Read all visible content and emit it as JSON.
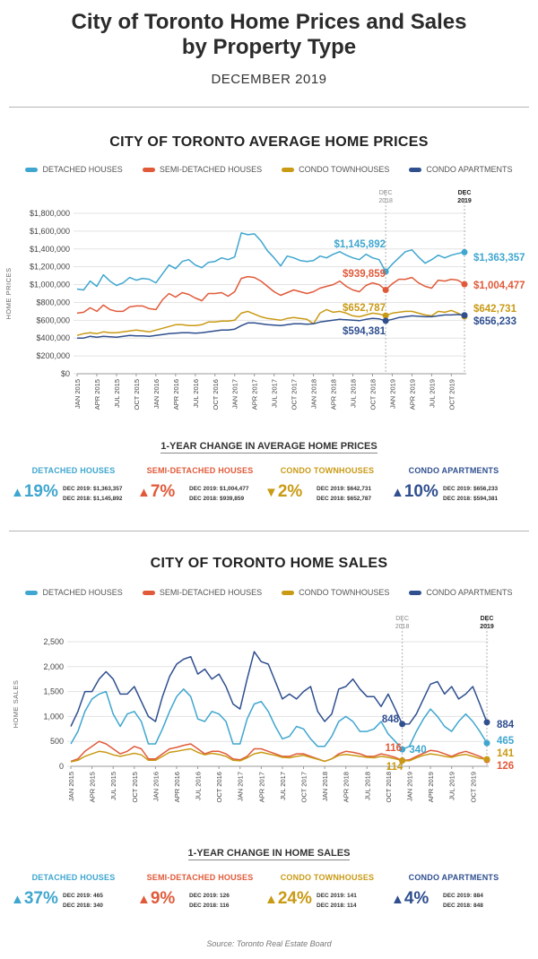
{
  "title_line1": "City of Toronto Home Prices and Sales",
  "title_line2": "by Property Type",
  "subtitle": "DECEMBER 2019",
  "colors": {
    "detached": "#3fa6cf",
    "semi": "#e05a3a",
    "townhouse": "#c99a14",
    "apartment": "#2f4f8f"
  },
  "legend": [
    "DETACHED HOUSES",
    "SEMI-DETACHED HOUSES",
    "CONDO TOWNHOUSES",
    "CONDO APARTMENTS"
  ],
  "prices": {
    "section_title": "CITY OF TORONTO AVERAGE HOME PRICES",
    "ylabel": "HOME PRICES",
    "change_title": "1-YEAR CHANGE IN AVERAGE HOME PRICES",
    "change": [
      {
        "name": "DETACHED HOUSES",
        "arrow": "▲",
        "pct": "19%",
        "line1": "DEC 2019: $1,363,357",
        "line2": "DEC 2018: $1,145,892"
      },
      {
        "name": "SEMI-DETACHED HOUSES",
        "arrow": "▲",
        "pct": "7%",
        "line1": "DEC 2019: $1,004,477",
        "line2": "DEC 2018: $939,859"
      },
      {
        "name": "CONDO TOWNHOUSES",
        "arrow": "▼",
        "pct": "2%",
        "line1": "DEC 2019: $642,731",
        "line2": "DEC 2018: $652,787"
      },
      {
        "name": "CONDO APARTMENTS",
        "arrow": "▲",
        "pct": "10%",
        "line1": "DEC 2019: $656,233",
        "line2": "DEC 2018: $594,381"
      }
    ]
  },
  "sales": {
    "section_title": "CITY OF TORONTO HOME SALES",
    "ylabel": "HOME SALES",
    "change_title": "1-YEAR CHANGE IN HOME SALES",
    "change": [
      {
        "name": "DETACHED HOUSES",
        "arrow": "▲",
        "pct": "37%",
        "line1": "DEC 2019: 465",
        "line2": "DEC 2018: 340"
      },
      {
        "name": "SEMI-DETACHED HOUSES",
        "arrow": "▲",
        "pct": "9%",
        "line1": "DEC 2019: 126",
        "line2": "DEC 2018: 116"
      },
      {
        "name": "CONDO TOWNHOUSES",
        "arrow": "▲",
        "pct": "24%",
        "line1": "DEC 2019: 141",
        "line2": "DEC 2018: 114"
      },
      {
        "name": "CONDO APARTMENTS",
        "arrow": "▲",
        "pct": "4%",
        "line1": "DEC 2019: 884",
        "line2": "DEC 2018: 848"
      }
    ]
  },
  "source": "Source: Toronto Real Estate Board",
  "chart_data": [
    {
      "type": "line",
      "title": "CITY OF TORONTO AVERAGE HOME PRICES",
      "ylabel": "HOME PRICES",
      "ylim": [
        0,
        1800000
      ],
      "yticks": [
        0,
        200000,
        400000,
        600000,
        800000,
        1000000,
        1200000,
        1400000,
        1600000,
        1800000
      ],
      "ytick_labels": [
        "$0",
        "$200,000",
        "$400,000",
        "$600,000",
        "$800,000",
        "$1,000,000",
        "$1,200,000",
        "$1,400,000",
        "$1,600,000",
        "$1,800,000"
      ],
      "xtick_labels": [
        "JAN 2015",
        "APR 2015",
        "JUL 2015",
        "OCT 2015",
        "JAN 2016",
        "APR 2016",
        "JUL 2016",
        "OCT 2016",
        "JAN 2017",
        "APR 2017",
        "JUL 2017",
        "OCT 2017",
        "JAN 2018",
        "APR 2018",
        "JUL 2018",
        "OCT 2018",
        "JAN 2019",
        "APR 2019",
        "JUL 2019",
        "OCT 2019"
      ],
      "markers": [
        {
          "index": 47,
          "label_lines": [
            "DEC",
            "2018"
          ]
        },
        {
          "index": 59,
          "label_lines": [
            "DEC",
            "2019"
          ]
        }
      ],
      "series": [
        {
          "name": "DETACHED HOUSES",
          "key": "detached",
          "end_labels": [
            "$1,145,892",
            "$1,363,357"
          ],
          "values": [
            950000,
            940000,
            1040000,
            980000,
            1110000,
            1040000,
            990000,
            1020000,
            1080000,
            1050000,
            1070000,
            1060000,
            1020000,
            1120000,
            1220000,
            1180000,
            1260000,
            1280000,
            1220000,
            1190000,
            1250000,
            1260000,
            1300000,
            1280000,
            1310000,
            1580000,
            1560000,
            1570000,
            1490000,
            1380000,
            1300000,
            1210000,
            1320000,
            1300000,
            1270000,
            1260000,
            1270000,
            1320000,
            1300000,
            1340000,
            1370000,
            1330000,
            1300000,
            1280000,
            1340000,
            1300000,
            1280000,
            1145892,
            1230000,
            1300000,
            1370000,
            1390000,
            1310000,
            1240000,
            1280000,
            1330000,
            1300000,
            1330000,
            1350000,
            1363357
          ]
        },
        {
          "name": "SEMI-DETACHED HOUSES",
          "key": "semi",
          "end_labels": [
            "$939,859",
            "$1,004,477"
          ],
          "values": [
            680000,
            690000,
            740000,
            700000,
            770000,
            720000,
            700000,
            700000,
            750000,
            760000,
            760000,
            730000,
            720000,
            830000,
            900000,
            860000,
            910000,
            890000,
            850000,
            820000,
            900000,
            900000,
            910000,
            870000,
            920000,
            1070000,
            1090000,
            1080000,
            1040000,
            980000,
            920000,
            880000,
            910000,
            940000,
            920000,
            900000,
            920000,
            960000,
            980000,
            1000000,
            1040000,
            980000,
            940000,
            920000,
            990000,
            1020000,
            1000000,
            939859,
            1010000,
            1060000,
            1060000,
            1080000,
            1020000,
            980000,
            960000,
            1050000,
            1040000,
            1060000,
            1050000,
            1004477
          ]
        },
        {
          "name": "CONDO TOWNHOUSES",
          "key": "townhouse",
          "end_labels": [
            "$652,787",
            "$642,731"
          ],
          "values": [
            430000,
            450000,
            460000,
            450000,
            470000,
            460000,
            460000,
            470000,
            480000,
            490000,
            480000,
            470000,
            490000,
            510000,
            530000,
            550000,
            550000,
            540000,
            540000,
            550000,
            580000,
            580000,
            590000,
            590000,
            600000,
            680000,
            700000,
            670000,
            640000,
            620000,
            610000,
            600000,
            620000,
            630000,
            620000,
            610000,
            560000,
            680000,
            720000,
            690000,
            700000,
            680000,
            650000,
            640000,
            660000,
            680000,
            670000,
            652787,
            680000,
            690000,
            700000,
            700000,
            680000,
            660000,
            650000,
            700000,
            690000,
            710000,
            680000,
            642731
          ]
        },
        {
          "name": "CONDO APARTMENTS",
          "key": "apartment",
          "end_labels": [
            "$594,381",
            "$656,233"
          ],
          "values": [
            400000,
            400000,
            420000,
            410000,
            420000,
            415000,
            410000,
            420000,
            430000,
            425000,
            425000,
            420000,
            430000,
            440000,
            450000,
            455000,
            460000,
            460000,
            455000,
            460000,
            470000,
            480000,
            490000,
            490000,
            500000,
            540000,
            570000,
            570000,
            560000,
            550000,
            545000,
            540000,
            550000,
            560000,
            560000,
            555000,
            560000,
            580000,
            590000,
            600000,
            610000,
            605000,
            600000,
            595000,
            610000,
            620000,
            615000,
            594381,
            610000,
            630000,
            640000,
            650000,
            645000,
            640000,
            640000,
            650000,
            660000,
            660000,
            665000,
            656233
          ]
        }
      ]
    },
    {
      "type": "line",
      "title": "CITY OF TORONTO HOME SALES",
      "ylabel": "HOME SALES",
      "ylim": [
        0,
        2500
      ],
      "yticks": [
        0,
        500,
        1000,
        1500,
        2000,
        2500
      ],
      "ytick_labels": [
        "0",
        "500",
        "1,000",
        "1,500",
        "2,000",
        "2,500"
      ],
      "xtick_labels": [
        "JAN 2015",
        "APR 2015",
        "JUL 2015",
        "OCT 2015",
        "JAN 2016",
        "APR 2016",
        "JUL 2016",
        "OCT 2016",
        "JAN 2017",
        "APR 2017",
        "JUL 2017",
        "OCT 2017",
        "JAN 2018",
        "APR 2018",
        "JUL 2018",
        "OCT 2018",
        "JAN 2019",
        "APR 2019",
        "JUL 2019",
        "OCT 2019"
      ],
      "markers": [
        {
          "index": 47,
          "label_lines": [
            "DEC",
            "2018"
          ]
        },
        {
          "index": 59,
          "label_lines": [
            "DEC",
            "2019"
          ]
        }
      ],
      "series": [
        {
          "name": "DETACHED HOUSES",
          "key": "detached",
          "end_labels": [
            "340",
            "465"
          ],
          "values": [
            450,
            700,
            1100,
            1350,
            1450,
            1500,
            1050,
            800,
            1050,
            1100,
            900,
            450,
            450,
            750,
            1100,
            1400,
            1550,
            1400,
            950,
            900,
            1100,
            1050,
            900,
            450,
            450,
            950,
            1250,
            1300,
            1100,
            800,
            550,
            600,
            800,
            750,
            550,
            400,
            400,
            600,
            900,
            1000,
            900,
            700,
            700,
            750,
            900,
            650,
            500,
            340,
            400,
            700,
            950,
            1150,
            1000,
            800,
            700,
            900,
            1050,
            900,
            700,
            465
          ]
        },
        {
          "name": "SEMI-DETACHED HOUSES",
          "key": "semi",
          "end_labels": [
            "116",
            "126"
          ],
          "values": [
            100,
            150,
            300,
            400,
            500,
            450,
            350,
            250,
            300,
            400,
            350,
            150,
            150,
            250,
            350,
            380,
            420,
            450,
            350,
            250,
            300,
            300,
            250,
            150,
            130,
            200,
            350,
            350,
            300,
            250,
            200,
            200,
            250,
            250,
            200,
            150,
            100,
            150,
            250,
            300,
            280,
            250,
            200,
            200,
            250,
            220,
            180,
            116,
            130,
            200,
            260,
            320,
            300,
            250,
            200,
            260,
            300,
            250,
            200,
            126
          ]
        },
        {
          "name": "CONDO TOWNHOUSES",
          "key": "townhouse",
          "end_labels": [
            "114",
            "141"
          ],
          "values": [
            90,
            120,
            200,
            250,
            300,
            280,
            230,
            200,
            230,
            260,
            230,
            120,
            120,
            200,
            280,
            300,
            330,
            350,
            280,
            230,
            260,
            240,
            200,
            120,
            110,
            170,
            250,
            280,
            250,
            220,
            180,
            170,
            200,
            220,
            180,
            140,
            100,
            150,
            220,
            240,
            220,
            200,
            180,
            170,
            200,
            180,
            150,
            114,
            110,
            170,
            220,
            250,
            230,
            200,
            180,
            220,
            240,
            200,
            160,
            141
          ]
        },
        {
          "name": "CONDO APARTMENTS",
          "key": "apartment",
          "end_labels": [
            "848",
            "884"
          ],
          "values": [
            800,
            1100,
            1500,
            1500,
            1750,
            1900,
            1750,
            1450,
            1450,
            1600,
            1300,
            1000,
            900,
            1400,
            1800,
            2050,
            2150,
            2200,
            1850,
            1950,
            1750,
            1850,
            1600,
            1250,
            1150,
            1750,
            2300,
            2100,
            2050,
            1700,
            1350,
            1450,
            1350,
            1500,
            1600,
            1100,
            900,
            1050,
            1550,
            1600,
            1750,
            1550,
            1400,
            1400,
            1200,
            1450,
            1150,
            848,
            850,
            1050,
            1350,
            1650,
            1700,
            1450,
            1600,
            1350,
            1450,
            1600,
            1250,
            884
          ]
        }
      ]
    }
  ]
}
